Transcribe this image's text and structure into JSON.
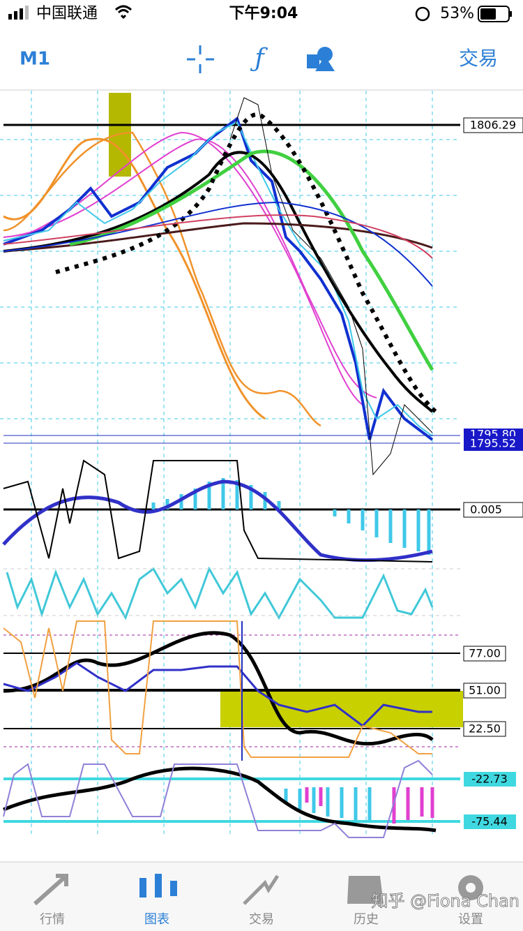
{
  "status_bar": {
    "carrier": "中国联通",
    "time": "下午9:04",
    "battery": "53%"
  },
  "toolbar": {
    "timeframe": "M1",
    "trade": "交易"
  },
  "price_labels": {
    "top": "1806.29",
    "bid": "1795.80",
    "ask": "1795.52"
  },
  "indicator_labels": {
    "macd_zero": "0.005",
    "level_high": "77.00",
    "level_mid": "51.00",
    "level_low": "22.50",
    "wpr_high": "-22.73",
    "wpr_low": "-75.44"
  },
  "tab_bar": [
    "行情",
    "图表",
    "交易",
    "历史",
    "设置"
  ],
  "watermark": "知乎 @Fiona Chan"
}
